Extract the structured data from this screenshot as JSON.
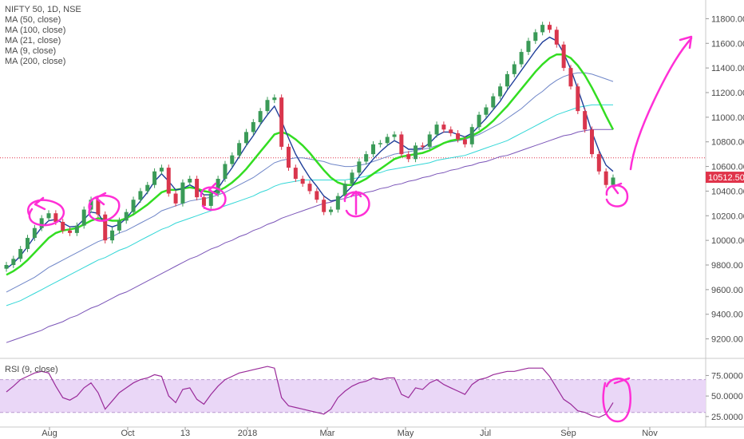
{
  "legend": {
    "title": "NIFTY 50, 1D, NSE",
    "ma_items": [
      "MA (50, close)",
      "MA (100, close)",
      "MA (21, close)",
      "MA (9, close)",
      "MA (200, close)"
    ]
  },
  "rsi_legend": "RSI (9, close)",
  "colors": {
    "up": "#3a9a57",
    "down": "#d9364d",
    "ma9": "#1f3e99",
    "ma21": "#33dd22",
    "ma50": "#6f86c8",
    "ma100": "#33d7d7",
    "ma200": "#7b55b8",
    "rsi": "#9a2b9a",
    "rsi_band": "#ead7f7",
    "annotation": "#ff2fd6",
    "last_price_tag": "#e0334a",
    "hline": "#e0334a"
  },
  "chart_data": {
    "type": "candlestick",
    "symbol": "NIFTY 50",
    "interval": "1D",
    "exchange": "NSE",
    "x_ticks": [
      "Aug",
      "Oct",
      "13",
      "2018",
      "Mar",
      "May",
      "Jul",
      "Sep",
      "Nov"
    ],
    "y_ticks": [
      "11800.00",
      "11600.00",
      "11400.00",
      "11200.00",
      "11000.00",
      "10800.00",
      "10600.00",
      "10400.00",
      "10200.00",
      "10000.00",
      "9800.00",
      "9600.00",
      "9400.00",
      "9200.00"
    ],
    "ylim": [
      9100,
      11900
    ],
    "last_price": "10512.50",
    "reference_line": 10670,
    "closes": [
      9800,
      9850,
      9930,
      10020,
      10100,
      10180,
      10220,
      10150,
      10080,
      10060,
      10120,
      10250,
      10330,
      10210,
      10000,
      10080,
      10160,
      10230,
      10330,
      10400,
      10450,
      10560,
      10590,
      10380,
      10300,
      10470,
      10500,
      10350,
      10280,
      10380,
      10500,
      10620,
      10690,
      10790,
      10880,
      10960,
      11050,
      11140,
      11160,
      10760,
      10590,
      10500,
      10460,
      10400,
      10330,
      10230,
      10250,
      10360,
      10460,
      10550,
      10640,
      10700,
      10780,
      10790,
      10840,
      10860,
      10700,
      10660,
      10770,
      10760,
      10860,
      10940,
      10900,
      10870,
      10820,
      10780,
      10920,
      11020,
      11080,
      11170,
      11250,
      11350,
      11430,
      11530,
      11620,
      11690,
      11750,
      11710,
      11590,
      11400,
      11250,
      11050,
      10900,
      10700,
      10560,
      10450,
      10510
    ],
    "ma9": [
      9770,
      9815,
      9875,
      9950,
      10030,
      10105,
      10160,
      10170,
      10140,
      10110,
      10115,
      10170,
      10230,
      10220,
      10130,
      10110,
      10130,
      10180,
      10250,
      10320,
      10390,
      10480,
      10540,
      10480,
      10410,
      10420,
      10450,
      10420,
      10370,
      10370,
      10420,
      10510,
      10590,
      10680,
      10770,
      10850,
      10940,
      11020,
      11090,
      10970,
      10830,
      10700,
      10600,
      10510,
      10440,
      10360,
      10320,
      10330,
      10380,
      10440,
      10520,
      10590,
      10660,
      10720,
      10770,
      10810,
      10780,
      10740,
      10740,
      10750,
      10790,
      10850,
      10880,
      10880,
      10860,
      10840,
      10870,
      10930,
      10990,
      11060,
      11130,
      11220,
      11300,
      11380,
      11460,
      11540,
      11610,
      11650,
      11620,
      11520,
      11390,
      11230,
      11060,
      10880,
      10730,
      10610,
      10560
    ],
    "ma21": [
      9720,
      9750,
      9790,
      9840,
      9900,
      9960,
      10020,
      10060,
      10080,
      10090,
      10100,
      10130,
      10160,
      10180,
      10170,
      10160,
      10160,
      10180,
      10210,
      10250,
      10290,
      10340,
      10390,
      10410,
      10410,
      10420,
      10430,
      10420,
      10400,
      10390,
      10400,
      10430,
      10470,
      10520,
      10580,
      10650,
      10720,
      10790,
      10860,
      10880,
      10860,
      10820,
      10770,
      10710,
      10640,
      10570,
      10510,
      10470,
      10450,
      10450,
      10470,
      10500,
      10540,
      10580,
      10620,
      10660,
      10680,
      10690,
      10700,
      10710,
      10730,
      10760,
      10790,
      10810,
      10820,
      10830,
      10850,
      10880,
      10920,
      10970,
      11030,
      11090,
      11160,
      11230,
      11300,
      11370,
      11430,
      11480,
      11510,
      11510,
      11480,
      11420,
      11340,
      11240,
      11130,
      11010,
      10900
    ],
    "ma50": [
      9580,
      9610,
      9640,
      9670,
      9700,
      9740,
      9780,
      9810,
      9840,
      9870,
      9900,
      9930,
      9960,
      9990,
      10010,
      10030,
      10060,
      10080,
      10110,
      10140,
      10170,
      10200,
      10240,
      10260,
      10280,
      10300,
      10320,
      10330,
      10340,
      10350,
      10370,
      10390,
      10420,
      10450,
      10480,
      10510,
      10550,
      10590,
      10630,
      10650,
      10660,
      10670,
      10670,
      10660,
      10650,
      10640,
      10620,
      10610,
      10600,
      10600,
      10610,
      10620,
      10640,
      10660,
      10680,
      10700,
      10710,
      10720,
      10730,
      10740,
      10750,
      10770,
      10790,
      10800,
      10810,
      10820,
      10840,
      10860,
      10890,
      10920,
      10950,
      10990,
      11030,
      11070,
      11120,
      11170,
      11210,
      11260,
      11300,
      11330,
      11350,
      11360,
      11360,
      11350,
      11330,
      11310,
      11290
    ],
    "ma100": [
      9470,
      9490,
      9510,
      9540,
      9570,
      9600,
      9630,
      9660,
      9690,
      9720,
      9750,
      9780,
      9810,
      9840,
      9860,
      9890,
      9920,
      9940,
      9970,
      10000,
      10030,
      10060,
      10090,
      10110,
      10140,
      10160,
      10180,
      10200,
      10220,
      10240,
      10260,
      10280,
      10300,
      10320,
      10340,
      10360,
      10390,
      10410,
      10440,
      10460,
      10470,
      10480,
      10490,
      10490,
      10490,
      10490,
      10490,
      10490,
      10490,
      10500,
      10510,
      10520,
      10540,
      10550,
      10570,
      10580,
      10590,
      10600,
      10610,
      10620,
      10630,
      10650,
      10660,
      10670,
      10680,
      10690,
      10710,
      10730,
      10750,
      10770,
      10790,
      10810,
      10840,
      10870,
      10900,
      10930,
      10960,
      10990,
      11020,
      11040,
      11060,
      11080,
      11090,
      11100,
      11100,
      11100,
      11100
    ],
    "ma200": [
      9170,
      9190,
      9210,
      9230,
      9250,
      9270,
      9300,
      9320,
      9340,
      9370,
      9390,
      9420,
      9450,
      9470,
      9500,
      9530,
      9560,
      9580,
      9610,
      9640,
      9670,
      9700,
      9730,
      9760,
      9790,
      9820,
      9850,
      9870,
      9900,
      9930,
      9950,
      9980,
      10000,
      10030,
      10050,
      10080,
      10100,
      10130,
      10150,
      10180,
      10200,
      10220,
      10240,
      10260,
      10280,
      10300,
      10310,
      10330,
      10340,
      10360,
      10370,
      10390,
      10400,
      10420,
      10430,
      10450,
      10460,
      10480,
      10490,
      10510,
      10520,
      10540,
      10550,
      10570,
      10580,
      10600,
      10610,
      10630,
      10640,
      10660,
      10680,
      10690,
      10710,
      10730,
      10750,
      10770,
      10790,
      10810,
      10830,
      10850,
      10860,
      10880,
      10890,
      10900,
      10900,
      10900,
      10900
    ],
    "rsi": {
      "ticks": [
        "75.0000",
        "50.0000",
        "25.0000"
      ],
      "ylim": [
        20,
        90
      ],
      "band": [
        30,
        70
      ],
      "values": [
        55,
        62,
        70,
        74,
        78,
        80,
        78,
        62,
        48,
        45,
        50,
        60,
        66,
        54,
        34,
        44,
        54,
        60,
        66,
        70,
        72,
        76,
        74,
        50,
        42,
        58,
        60,
        46,
        40,
        52,
        62,
        70,
        74,
        78,
        80,
        82,
        84,
        86,
        84,
        48,
        38,
        36,
        34,
        32,
        30,
        28,
        34,
        48,
        56,
        62,
        66,
        68,
        72,
        70,
        72,
        72,
        52,
        48,
        60,
        58,
        66,
        70,
        64,
        60,
        56,
        52,
        64,
        70,
        72,
        76,
        78,
        80,
        80,
        82,
        84,
        84,
        84,
        74,
        60,
        46,
        40,
        32,
        30,
        26,
        24,
        28,
        42
      ]
    }
  }
}
